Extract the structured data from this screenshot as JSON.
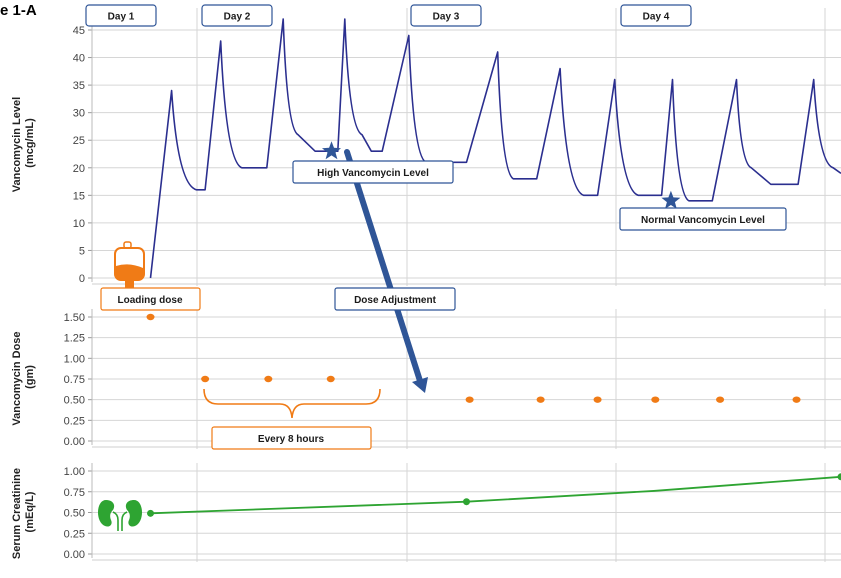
{
  "figure": {
    "title_fragment": "e 1-A"
  },
  "colors": {
    "vanco_line": "#2b2f8f",
    "dose_dot": "#f07b16",
    "creat_line": "#2ea432",
    "star": "#2f5597",
    "label_border_blue": "#2f5597",
    "label_border_orange": "#f07b16",
    "grid": "#d6d6d6"
  },
  "day_labels": [
    "Day 1",
    "Day 2",
    "Day 3",
    "Day 4"
  ],
  "annotations": {
    "high_level": "High Vancomycin Level",
    "normal_level": "Normal Vancomycin Level",
    "loading_dose": "Loading dose",
    "dose_adjustment": "Dose Adjustment",
    "every_8_hours": "Every 8 hours"
  },
  "icons": [
    "iv-bag-icon",
    "kidneys-icon",
    "star-icon",
    "arrow-icon",
    "brace-icon"
  ],
  "chart_data": [
    {
      "type": "line",
      "ylabel": [
        "Vancomycin Level",
        "(mcg/mL)"
      ],
      "yticks": [
        "0",
        "5",
        "10",
        "15",
        "20",
        "25",
        "30",
        "35",
        "40",
        "45"
      ],
      "ylim": [
        0,
        45
      ],
      "xlim_hours": [
        0,
        96
      ],
      "grid": true,
      "series": [
        {
          "x": [
            7.5,
            10.2,
            13.4,
            14.5,
            16.5,
            19.2,
            22.4,
            24.5,
            26.4,
            28.6,
            31.5,
            32.4,
            34.6,
            35.8,
            37.2,
            40.6,
            42.8,
            48,
            52,
            54,
            57,
            60,
            63,
            64.8,
            67,
            70,
            73,
            74.4,
            76.5,
            79.5,
            82.6,
            84.5,
            87,
            90.5,
            92.5,
            95,
            96
          ],
          "y": [
            0,
            34.0,
            16.0,
            16.0,
            43.0,
            20.0,
            20.0,
            47.0,
            26.0,
            23.0,
            23.0,
            47.0,
            26.0,
            23.0,
            23.0,
            44.0,
            21.0,
            21.0,
            41.0,
            18.0,
            18.0,
            38.0,
            15.0,
            15.0,
            36.0,
            15.0,
            15.0,
            36.0,
            14.0,
            14.0,
            36.0,
            20.0,
            17.0,
            17.0,
            36.0,
            20.0,
            19.0
          ]
        }
      ],
      "markers": [
        {
          "label": "High Vancomycin Level",
          "x": 30.7,
          "y": 23.0
        },
        {
          "label": "Normal Vancomycin Level",
          "x": 74.2,
          "y": 14.0
        }
      ]
    },
    {
      "type": "scatter",
      "ylabel": [
        "Vancomycin Dose",
        "(gm)"
      ],
      "yticks": [
        "0.00",
        "0.25",
        "0.50",
        "0.75",
        "1.00",
        "1.25",
        "1.50"
      ],
      "ylim": [
        0,
        1.5
      ],
      "xlim_hours": [
        0,
        96
      ],
      "grid": true,
      "series": [
        {
          "x": [
            7.5,
            14.5,
            22.6,
            30.6,
            48.4,
            57.5,
            64.8,
            72.2,
            80.5,
            90.3
          ],
          "y": [
            1.5,
            0.75,
            0.75,
            0.75,
            0.5,
            0.5,
            0.5,
            0.5,
            0.5,
            0.5
          ]
        }
      ]
    },
    {
      "type": "line",
      "ylabel": [
        "Serum Creatinine",
        "(mEq/L)"
      ],
      "yticks": [
        "0.00",
        "0.25",
        "0.50",
        "0.75",
        "1.00"
      ],
      "ylim": [
        0,
        1.0
      ],
      "xlim_hours": [
        0,
        96
      ],
      "grid": true,
      "series": [
        {
          "x": [
            7.5,
            48.0,
            72.0,
            96.0
          ],
          "y": [
            0.49,
            0.63,
            0.76,
            0.93
          ]
        }
      ]
    }
  ]
}
